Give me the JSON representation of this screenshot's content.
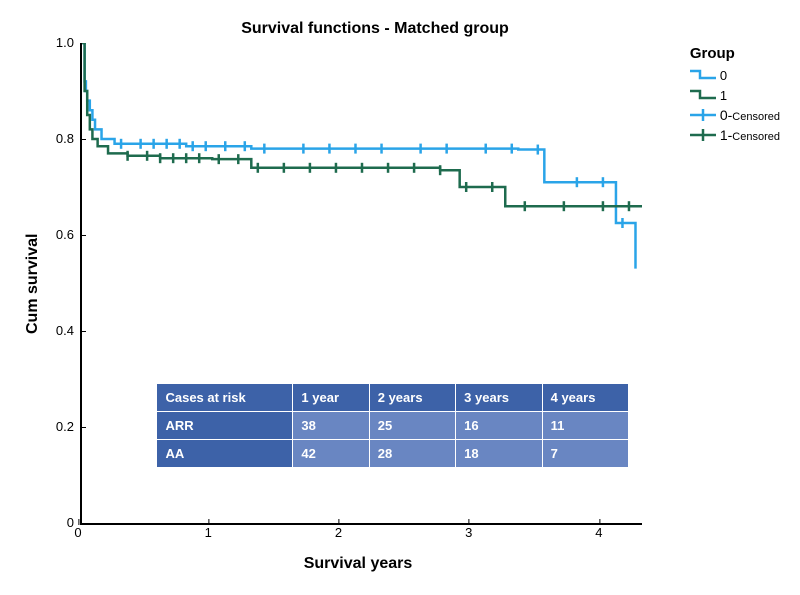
{
  "chart": {
    "title": "Survival functions - Matched group",
    "type": "kaplan-meier",
    "x_label": "Survival years",
    "y_label": "Cum survival",
    "xlim": [
      0,
      4.3
    ],
    "ylim": [
      0,
      1.0
    ],
    "y_ticks": [
      0,
      0.2,
      0.4,
      0.6,
      0.8,
      1.0
    ],
    "x_ticks": [
      0,
      1,
      2,
      3,
      4
    ],
    "background_color": "#ffffff",
    "axis_color": "#000000",
    "title_fontsize": 16,
    "label_fontsize": 16,
    "tick_fontsize": 13,
    "line_width": 2.5,
    "legend": {
      "title": "Group",
      "position": "top-right",
      "items": [
        {
          "label": "0",
          "color": "#2aa4e8",
          "style": "step"
        },
        {
          "label": "1",
          "color": "#1e6b4e",
          "style": "step"
        },
        {
          "label": "0-Censored",
          "color": "#2aa4e8",
          "style": "tick",
          "label_parts": [
            "0-",
            "Censored"
          ]
        },
        {
          "label": "1-Censored",
          "color": "#1e6b4e",
          "style": "tick",
          "label_parts": [
            "1-",
            "Censored"
          ]
        }
      ]
    },
    "series": [
      {
        "name": "Group 0",
        "color": "#2aa4e8",
        "points": [
          [
            0.0,
            1.0
          ],
          [
            0.02,
            0.92
          ],
          [
            0.03,
            0.9
          ],
          [
            0.04,
            0.88
          ],
          [
            0.06,
            0.86
          ],
          [
            0.08,
            0.84
          ],
          [
            0.1,
            0.82
          ],
          [
            0.15,
            0.8
          ],
          [
            0.25,
            0.79
          ],
          [
            0.8,
            0.785
          ],
          [
            1.3,
            0.78
          ],
          [
            2.0,
            0.78
          ],
          [
            2.8,
            0.78
          ],
          [
            3.35,
            0.778
          ],
          [
            3.55,
            0.71
          ],
          [
            4.1,
            0.625
          ],
          [
            4.25,
            0.53
          ]
        ],
        "censor_ticks": [
          0.3,
          0.45,
          0.55,
          0.65,
          0.75,
          0.85,
          0.95,
          1.1,
          1.25,
          1.4,
          1.7,
          1.9,
          2.1,
          2.3,
          2.6,
          2.8,
          3.1,
          3.3,
          3.5,
          3.8,
          4.0,
          4.15
        ]
      },
      {
        "name": "Group 1",
        "color": "#1e6b4e",
        "points": [
          [
            0.0,
            1.0
          ],
          [
            0.02,
            0.9
          ],
          [
            0.04,
            0.85
          ],
          [
            0.06,
            0.82
          ],
          [
            0.08,
            0.8
          ],
          [
            0.12,
            0.785
          ],
          [
            0.2,
            0.77
          ],
          [
            0.35,
            0.765
          ],
          [
            0.6,
            0.76
          ],
          [
            1.0,
            0.758
          ],
          [
            1.3,
            0.74
          ],
          [
            2.0,
            0.74
          ],
          [
            2.75,
            0.735
          ],
          [
            2.9,
            0.7
          ],
          [
            3.25,
            0.66
          ],
          [
            4.3,
            0.66
          ]
        ],
        "censor_ticks": [
          0.35,
          0.5,
          0.6,
          0.7,
          0.8,
          0.9,
          1.05,
          1.2,
          1.35,
          1.55,
          1.75,
          1.95,
          2.15,
          2.35,
          2.55,
          2.75,
          2.95,
          3.15,
          3.4,
          3.7,
          4.0,
          4.2
        ]
      }
    ],
    "risk_table": {
      "header_bg": "#3d62a8",
      "row_bg": "#6986c2",
      "text_color": "#ffffff",
      "columns": [
        "Cases at risk",
        "1 year",
        "2 years",
        "3 years",
        "4 years"
      ],
      "rows": [
        [
          "ARR",
          "38",
          "25",
          "16",
          "11"
        ],
        [
          "AA",
          "42",
          "28",
          "18",
          "7"
        ]
      ]
    }
  }
}
